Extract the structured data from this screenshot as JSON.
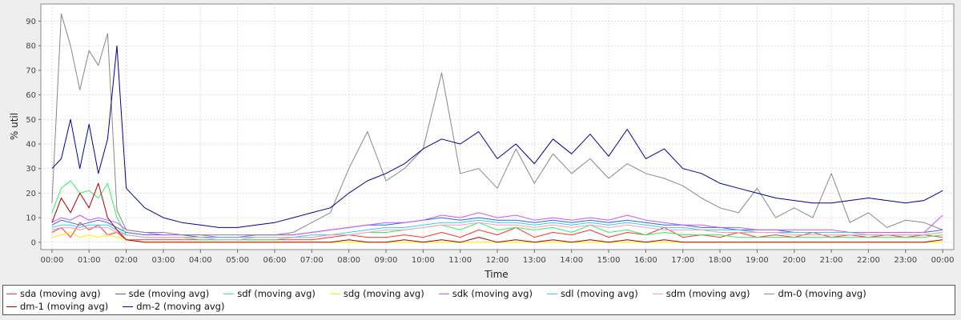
{
  "chart_data": {
    "type": "line",
    "title": "",
    "xlabel": "Time",
    "ylabel": "% util",
    "ylim": [
      -3,
      97
    ],
    "yticks": [
      0,
      10,
      20,
      30,
      40,
      50,
      60,
      70,
      80,
      90
    ],
    "xlim": [
      -0.3,
      24.3
    ],
    "xtick_labels": [
      "00:00",
      "01:00",
      "02:00",
      "03:00",
      "04:00",
      "05:00",
      "06:00",
      "07:00",
      "08:00",
      "09:00",
      "10:00",
      "11:00",
      "12:00",
      "13:00",
      "14:00",
      "15:00",
      "16:00",
      "17:00",
      "18:00",
      "19:00",
      "20:00",
      "21:00",
      "22:00",
      "23:00",
      "00:00"
    ],
    "grid": true,
    "legend_position": "bottom",
    "x": [
      0.0,
      0.25,
      0.5,
      0.75,
      1.0,
      1.25,
      1.5,
      1.75,
      2.0,
      2.5,
      3.0,
      3.5,
      4.0,
      4.5,
      5.0,
      5.5,
      6.0,
      6.5,
      7.0,
      7.5,
      8.0,
      8.5,
      9.0,
      9.5,
      10.0,
      10.5,
      11.0,
      11.5,
      12.0,
      12.5,
      13.0,
      13.5,
      14.0,
      14.5,
      15.0,
      15.5,
      16.0,
      16.5,
      17.0,
      17.5,
      18.0,
      18.5,
      19.0,
      19.5,
      20.0,
      20.5,
      21.0,
      21.5,
      22.0,
      22.5,
      23.0,
      23.5,
      24.0
    ],
    "series": [
      {
        "name": "sda (moving avg)",
        "color": "#ff3333",
        "values": [
          4,
          6,
          2,
          8,
          5,
          7,
          3,
          4,
          1,
          1,
          1,
          1,
          1,
          1,
          1,
          1,
          1,
          1,
          1,
          2,
          3,
          2,
          2,
          3,
          2,
          4,
          2,
          5,
          3,
          6,
          2,
          4,
          3,
          5,
          2,
          4,
          3,
          6,
          2,
          3,
          2,
          4,
          2,
          3,
          2,
          4,
          2,
          3,
          2,
          3,
          2,
          3,
          2
        ]
      },
      {
        "name": "sde (moving avg)",
        "color": "#3366dd",
        "values": [
          7,
          9,
          8,
          7,
          8,
          9,
          8,
          6,
          4,
          3,
          3,
          3,
          2,
          2,
          2,
          3,
          3,
          3,
          4,
          5,
          6,
          7,
          7,
          8,
          9,
          10,
          9,
          10,
          9,
          9,
          8,
          9,
          8,
          9,
          8,
          9,
          8,
          7,
          7,
          6,
          6,
          5,
          5,
          5,
          4,
          4,
          4,
          4,
          4,
          4,
          4,
          4,
          5
        ]
      },
      {
        "name": "sdf (moving avg)",
        "color": "#33ee66",
        "values": [
          12,
          22,
          25,
          20,
          21,
          18,
          24,
          10,
          3,
          2,
          2,
          2,
          1,
          1,
          1,
          1,
          1,
          2,
          2,
          3,
          3,
          4,
          4,
          5,
          6,
          7,
          5,
          8,
          5,
          6,
          5,
          6,
          4,
          7,
          4,
          5,
          3,
          4,
          3,
          3,
          3,
          2,
          2,
          2,
          2,
          2,
          2,
          2,
          2,
          2,
          2,
          2,
          3
        ]
      },
      {
        "name": "sdg (moving avg)",
        "color": "#ffee00",
        "values": [
          2,
          3,
          4,
          2,
          3,
          2,
          3,
          2,
          1,
          0,
          0,
          0,
          0,
          0,
          0,
          0,
          0,
          0,
          0,
          0,
          0,
          0,
          0,
          0,
          0,
          0,
          0,
          0,
          0,
          0,
          0,
          0,
          0,
          0,
          0,
          0,
          0,
          0,
          0,
          0,
          0,
          0,
          0,
          0,
          0,
          0,
          0,
          0,
          0,
          0,
          0,
          0,
          0
        ]
      },
      {
        "name": "sdk (moving avg)",
        "color": "#cc55ff",
        "values": [
          8,
          10,
          9,
          11,
          9,
          10,
          9,
          8,
          5,
          4,
          3,
          3,
          3,
          2,
          2,
          3,
          3,
          3,
          4,
          5,
          6,
          7,
          8,
          8,
          9,
          11,
          10,
          12,
          10,
          11,
          9,
          10,
          9,
          10,
          9,
          11,
          9,
          8,
          7,
          7,
          6,
          6,
          5,
          5,
          5,
          5,
          5,
          4,
          4,
          4,
          4,
          4,
          11
        ]
      },
      {
        "name": "sdl (moving avg)",
        "color": "#33ccee",
        "values": [
          6,
          7,
          7,
          6,
          7,
          7,
          7,
          5,
          3,
          2,
          2,
          2,
          2,
          2,
          2,
          2,
          2,
          2,
          3,
          3,
          4,
          5,
          6,
          6,
          7,
          8,
          8,
          9,
          8,
          8,
          7,
          8,
          7,
          8,
          7,
          8,
          7,
          6,
          6,
          5,
          5,
          5,
          4,
          4,
          4,
          4,
          4,
          4,
          3,
          3,
          3,
          3,
          4
        ]
      },
      {
        "name": "sdm (moving avg)",
        "color": "#ff99bb",
        "values": [
          5,
          6,
          6,
          5,
          6,
          6,
          6,
          4,
          3,
          2,
          2,
          2,
          2,
          1,
          1,
          2,
          2,
          2,
          2,
          3,
          3,
          4,
          5,
          5,
          6,
          7,
          7,
          8,
          7,
          7,
          6,
          7,
          6,
          7,
          6,
          7,
          6,
          5,
          5,
          5,
          4,
          4,
          4,
          4,
          3,
          3,
          3,
          3,
          3,
          3,
          3,
          3,
          4
        ]
      },
      {
        "name": "dm-0 (moving avg)",
        "color": "#888888",
        "values": [
          16,
          93,
          80,
          62,
          78,
          72,
          85,
          13,
          5,
          4,
          4,
          3,
          3,
          3,
          3,
          3,
          3,
          4,
          8,
          12,
          30,
          45,
          25,
          30,
          38,
          69,
          28,
          30,
          22,
          38,
          24,
          36,
          28,
          34,
          26,
          32,
          28,
          26,
          23,
          18,
          14,
          12,
          22,
          10,
          14,
          10,
          28,
          8,
          12,
          6,
          9,
          8,
          5
        ]
      },
      {
        "name": "dm-1 (moving avg)",
        "color": "#aa0000",
        "values": [
          8,
          18,
          12,
          20,
          14,
          24,
          10,
          5,
          1,
          0,
          0,
          0,
          0,
          0,
          0,
          0,
          0,
          0,
          0,
          0,
          1,
          0,
          0,
          1,
          0,
          1,
          0,
          2,
          0,
          1,
          0,
          1,
          0,
          1,
          0,
          1,
          0,
          1,
          0,
          0,
          0,
          0,
          0,
          0,
          0,
          0,
          0,
          0,
          0,
          0,
          0,
          0,
          1
        ]
      },
      {
        "name": "dm-2 (moving avg)",
        "color": "#000099",
        "values": [
          30,
          34,
          50,
          30,
          48,
          28,
          42,
          80,
          22,
          14,
          10,
          8,
          7,
          6,
          6,
          7,
          8,
          10,
          12,
          14,
          20,
          25,
          28,
          32,
          38,
          42,
          40,
          45,
          34,
          40,
          32,
          42,
          36,
          44,
          35,
          46,
          34,
          38,
          30,
          28,
          24,
          22,
          20,
          18,
          17,
          16,
          16,
          17,
          18,
          17,
          16,
          17,
          21
        ]
      }
    ]
  }
}
